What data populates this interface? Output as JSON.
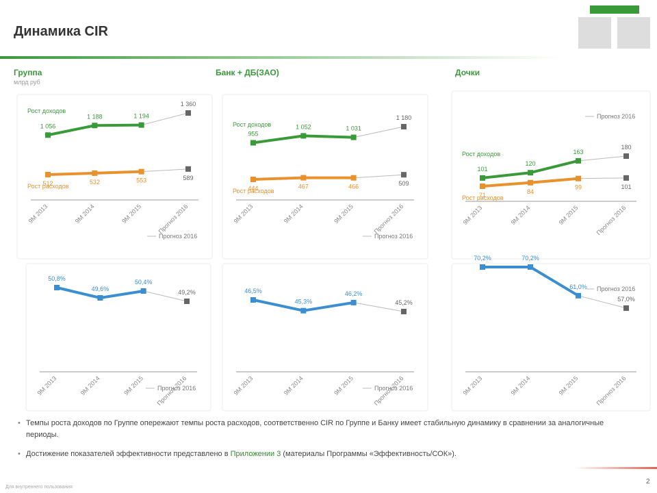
{
  "header": {
    "title": "Динамика CIR"
  },
  "columns": [
    {
      "title": "Группа",
      "subtitle": "млрд руб"
    },
    {
      "title": "Банк + ДБ(ЗАО)"
    },
    {
      "title": "Дочки"
    }
  ],
  "chart_data": [
    {
      "type": "line",
      "categories": [
        "9М 2013",
        "9М 2014",
        "9М 2015",
        "Прогноз 2016"
      ],
      "legend": "Прогноз 2016",
      "series": [
        {
          "name": "Рост доходов",
          "color": "#3a9a3a",
          "values": [
            1056,
            1188,
            1194,
            1360
          ],
          "value_labels": [
            "1 056",
            "1 188",
            "1 194",
            "1 360"
          ]
        },
        {
          "name": "Рост расходов",
          "color": "#e8912d",
          "values": [
            512,
            532,
            553,
            589
          ]
        }
      ]
    },
    {
      "type": "line",
      "categories": [
        "9М 2013",
        "9М 2014",
        "9М 2015",
        "Прогноз 2016"
      ],
      "legend": "Прогноз 2016",
      "series": [
        {
          "name": "Рост доходов",
          "color": "#3a9a3a",
          "values": [
            955,
            1052,
            1031,
            1180
          ],
          "value_labels": [
            "955",
            "1 052",
            "1 031",
            "1 180"
          ]
        },
        {
          "name": "Рост расходов",
          "color": "#e8912d",
          "values": [
            444,
            467,
            466,
            509
          ]
        }
      ]
    },
    {
      "type": "line",
      "categories": [
        "9М 2013",
        "9М 2014",
        "9М 2015",
        "Прогноз 2016"
      ],
      "legend": "Прогноз 2016",
      "series": [
        {
          "name": "Рост доходов",
          "color": "#3a9a3a",
          "values": [
            101,
            120,
            163,
            180
          ]
        },
        {
          "name": "Рост расходов",
          "color": "#e8912d",
          "values": [
            71,
            84,
            99,
            101
          ]
        }
      ]
    },
    {
      "type": "line",
      "categories": [
        "9М 2013",
        "9М 2014",
        "9М 2015",
        "Прогноз 2016"
      ],
      "legend": "Прогноз 2016",
      "series": [
        {
          "color": "#3b8fd0",
          "values": [
            50.8,
            49.6,
            50.4,
            49.2
          ],
          "value_labels": [
            "50,8%",
            "49,6%",
            "50,4%",
            "49,2%"
          ]
        }
      ]
    },
    {
      "type": "line",
      "categories": [
        "9М 2013",
        "9М 2014",
        "9М 2015",
        "Прогноз 2016"
      ],
      "legend": "Прогноз 2016",
      "series": [
        {
          "color": "#3b8fd0",
          "values": [
            46.5,
            45.3,
            46.2,
            45.2
          ],
          "value_labels": [
            "46,5%",
            "45,3%",
            "46,2%",
            "45,2%"
          ]
        }
      ]
    },
    {
      "type": "line",
      "categories": [
        "9М 2013",
        "9М 2014",
        "9М 2015",
        "Прогноз 2016"
      ],
      "legend": "Прогноз 2016",
      "series": [
        {
          "color": "#3b8fd0",
          "values": [
            70.2,
            70.2,
            61.0,
            57.0
          ],
          "value_labels": [
            "70,2%",
            "70,2%",
            "61,0%",
            "57,0%"
          ]
        }
      ]
    }
  ],
  "bullets": [
    {
      "text": "Темпы роста доходов по Группе опережают темпы роста расходов, соответственно CIR по Группе и Банку имеет стабильную динамику в сравнении за аналогичные периоды."
    },
    {
      "text": "Достижение показателей эффективности представлено в",
      "link": "Приложении 3",
      "tail": "(материалы Программы «Эффективность/СОК»)."
    }
  ],
  "footer": {
    "note": "Для внутреннего пользования",
    "page": "2"
  }
}
